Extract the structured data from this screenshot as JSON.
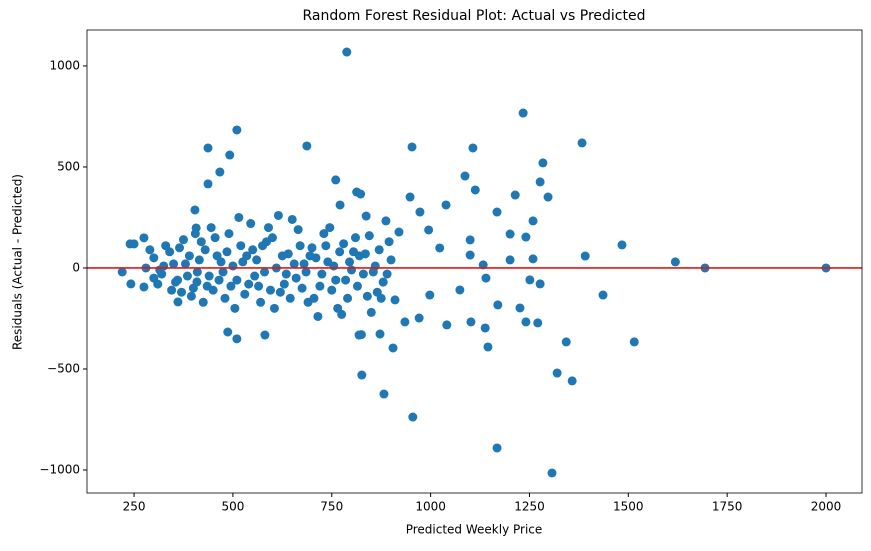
{
  "chart_data": {
    "type": "scatter",
    "title": "Random Forest Residual Plot: Actual vs Predicted",
    "x_label": "Predicted Weekly Price",
    "y_label": "Residuals (Actual - Predicted)",
    "xlim": [
      131,
      2091
    ],
    "ylim": [
      -1114,
      1178
    ],
    "xticks": [
      250,
      500,
      750,
      1000,
      1250,
      1500,
      1750,
      2000
    ],
    "yticks": [
      {
        "value": -1000,
        "label": "−1000"
      },
      {
        "value": -500,
        "label": "−500"
      },
      0,
      500,
      1000
    ],
    "reference_line": {
      "y": 0,
      "color": "#e8150f"
    },
    "series": [
      {
        "color": "#1f77b4",
        "x": [
          788,
          1234,
          510,
          437,
          492,
          687,
          953,
          1107,
          1383,
          1284,
          467,
          437,
          760,
          1087,
          1113,
          1214,
          1297,
          1277,
          813,
          823,
          948,
          1484,
          1619,
          1694,
          2000,
          1391,
          1436,
          1515,
          1343,
          1320,
          1358,
          1168,
          1307,
          955,
          882,
          826,
          905,
          872,
          819,
          510,
          487,
          581,
          1145,
          1170,
          1226,
          1241,
          1271,
          1041,
          1102,
          1138,
          971,
          935,
          973,
          1039,
          1168,
          1259,
          1201,
          1241,
          995,
          920,
          887,
          771,
          837,
          1100,
          1201,
          1259,
          1133,
          1100,
          1023,
          1251,
          1277,
          1140,
          1074,
          910,
          998,
          220,
          240,
          250,
          242,
          275,
          275,
          361,
          407,
          404,
          409,
          300,
          320,
          340,
          360,
          380,
          400,
          420,
          440,
          460,
          480,
          500,
          520,
          540,
          560,
          580,
          600,
          620,
          640,
          660,
          680,
          700,
          720,
          740,
          760,
          780,
          800,
          820,
          840,
          860,
          880,
          900,
          310,
          330,
          350,
          370,
          390,
          410,
          430,
          450,
          470,
          490,
          510,
          530,
          550,
          570,
          590,
          610,
          630,
          650,
          670,
          690,
          710,
          730,
          750,
          770,
          790,
          810,
          830,
          850,
          870,
          890,
          280,
          300,
          325,
          345,
          365,
          385,
          405,
          425,
          445,
          465,
          485,
          505,
          525,
          545,
          565,
          585,
          605,
          625,
          645,
          665,
          685,
          705,
          725,
          745,
          765,
          785,
          805,
          825,
          845,
          865,
          290,
          315,
          355,
          375,
          395,
          415,
          435,
          455,
          475,
          495,
          515,
          535,
          555,
          575,
          595,
          615,
          635,
          655,
          675,
          695,
          715,
          735,
          755,
          775,
          795,
          815,
          835,
          855,
          875,
          895
        ],
        "values": [
          1069,
          767,
          683,
          594,
          559,
          604,
          599,
          594,
          619,
          520,
          475,
          416,
          436,
          455,
          386,
          361,
          351,
          426,
          376,
          366,
          351,
          114,
          30,
          0,
          0,
          59,
          -134,
          -366,
          -366,
          -520,
          -559,
          -891,
          -1015,
          -738,
          -624,
          -530,
          -396,
          -327,
          -332,
          -351,
          -317,
          -332,
          -391,
          -183,
          -198,
          -267,
          -272,
          -282,
          -267,
          -297,
          -248,
          -267,
          277,
          312,
          277,
          233,
          168,
          153,
          188,
          178,
          233,
          312,
          257,
          139,
          40,
          45,
          15,
          64,
          99,
          -59,
          -79,
          -50,
          -109,
          -158,
          -134,
          -20,
          119,
          119,
          -79,
          149,
          -94,
          -168,
          198,
          287,
          -69,
          50,
          -30,
          80,
          -60,
          20,
          -100,
          130,
          -40,
          60,
          -150,
          10,
          110,
          -80,
          40,
          -20,
          150,
          -120,
          70,
          -50,
          20,
          100,
          -90,
          30,
          -60,
          120,
          -10,
          60,
          -140,
          10,
          -70,
          40,
          -80,
          110,
          20,
          -120,
          60,
          -20,
          90,
          -110,
          30,
          170,
          -60,
          -130,
          90,
          -170,
          200,
          0,
          -80,
          240,
          110,
          -170,
          50,
          170,
          -110,
          80,
          -150,
          150,
          -30,
          -220,
          90,
          -30,
          0,
          -50,
          10,
          -110,
          100,
          -40,
          170,
          -170,
          200,
          -60,
          80,
          -200,
          30,
          220,
          -90,
          130,
          -200,
          60,
          -150,
          190,
          -20,
          -150,
          -30,
          200,
          -200,
          -60,
          80,
          -330,
          160,
          -120,
          90,
          -10,
          -70,
          140,
          -140,
          40,
          -90,
          150,
          -20,
          -90,
          250,
          60,
          -40,
          110,
          -110,
          260,
          -30,
          20,
          -100,
          60,
          -240,
          110,
          10,
          -230,
          30,
          -90,
          70,
          -20,
          -150,
          130
        ]
      }
    ]
  }
}
